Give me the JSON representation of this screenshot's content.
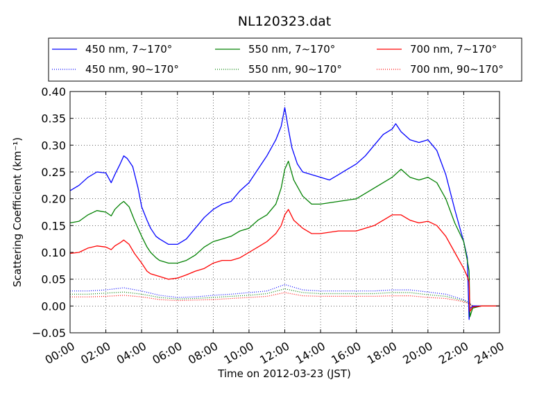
{
  "chart_data": {
    "type": "line",
    "title": "NL120323.dat",
    "xlabel": "Time on 2012-03-23 (JST)",
    "ylabel": "Scattering Coefficient (km⁻¹)",
    "xlim": [
      0,
      24
    ],
    "ylim": [
      -0.05,
      0.4
    ],
    "x_ticks": [
      "00:00",
      "02:00",
      "04:00",
      "06:00",
      "08:00",
      "10:00",
      "12:00",
      "14:00",
      "16:00",
      "18:00",
      "20:00",
      "22:00",
      "24:00"
    ],
    "y_ticks": [
      "−0.05",
      "0.00",
      "0.05",
      "0.10",
      "0.15",
      "0.20",
      "0.25",
      "0.30",
      "0.35",
      "0.40"
    ],
    "grid": true,
    "legend_position": "top",
    "series": [
      {
        "name": "450 nm, 7∼170°",
        "color": "#0000ff",
        "style": "solid",
        "x": [
          0,
          0.5,
          1,
          1.5,
          2,
          2.3,
          2.5,
          2.8,
          3,
          3.2,
          3.5,
          3.8,
          4,
          4.3,
          4.5,
          4.8,
          5,
          5.5,
          6,
          6.5,
          7,
          7.5,
          8,
          8.5,
          9,
          9.5,
          10,
          10.5,
          11,
          11.5,
          11.8,
          12,
          12.2,
          12.4,
          12.7,
          13,
          13.5,
          14,
          14.5,
          15,
          15.5,
          16,
          16.5,
          17,
          17.5,
          18,
          18.2,
          18.5,
          19,
          19.5,
          20,
          20.5,
          21,
          21.5,
          22,
          22.2,
          22.3,
          22.35,
          22.5,
          23,
          24
        ],
        "y": [
          0.215,
          0.225,
          0.24,
          0.25,
          0.248,
          0.23,
          0.245,
          0.265,
          0.28,
          0.275,
          0.26,
          0.22,
          0.185,
          0.16,
          0.145,
          0.13,
          0.125,
          0.115,
          0.115,
          0.125,
          0.145,
          0.165,
          0.18,
          0.19,
          0.195,
          0.215,
          0.23,
          0.255,
          0.28,
          0.31,
          0.335,
          0.37,
          0.33,
          0.295,
          0.265,
          0.25,
          0.245,
          0.24,
          0.235,
          0.245,
          0.255,
          0.265,
          0.28,
          0.3,
          0.32,
          0.33,
          0.34,
          0.325,
          0.31,
          0.305,
          0.31,
          0.29,
          0.245,
          0.18,
          0.12,
          0.09,
          -0.025,
          -0.005,
          0.0,
          0.0,
          0.0
        ]
      },
      {
        "name": "550 nm, 7∼170°",
        "color": "#008000",
        "style": "solid",
        "x": [
          0,
          0.5,
          1,
          1.5,
          2,
          2.3,
          2.5,
          2.8,
          3,
          3.3,
          3.6,
          4,
          4.3,
          4.5,
          4.8,
          5,
          5.5,
          6,
          6.5,
          7,
          7.5,
          8,
          8.5,
          9,
          9.5,
          10,
          10.5,
          11,
          11.5,
          11.8,
          12,
          12.2,
          12.5,
          13,
          13.5,
          14,
          15,
          16,
          17,
          18,
          18.5,
          19,
          19.5,
          20,
          20.5,
          21,
          21.5,
          22,
          22.2,
          22.3,
          22.35,
          22.5,
          23,
          24
        ],
        "y": [
          0.155,
          0.158,
          0.17,
          0.178,
          0.175,
          0.168,
          0.18,
          0.19,
          0.195,
          0.185,
          0.16,
          0.13,
          0.11,
          0.1,
          0.09,
          0.085,
          0.08,
          0.08,
          0.085,
          0.095,
          0.11,
          0.12,
          0.125,
          0.13,
          0.14,
          0.145,
          0.16,
          0.17,
          0.19,
          0.22,
          0.255,
          0.27,
          0.235,
          0.205,
          0.19,
          0.19,
          0.195,
          0.2,
          0.22,
          0.24,
          0.255,
          0.24,
          0.235,
          0.24,
          0.23,
          0.2,
          0.155,
          0.12,
          0.085,
          0.065,
          -0.02,
          -0.004,
          0.0,
          0.0
        ]
      },
      {
        "name": "700 nm, 7∼170°",
        "color": "#ff0000",
        "style": "solid",
        "x": [
          0,
          0.5,
          1,
          1.5,
          2,
          2.3,
          2.5,
          2.8,
          3,
          3.3,
          3.6,
          4,
          4.3,
          4.5,
          5,
          5.5,
          6,
          6.5,
          7,
          7.5,
          8,
          8.5,
          9,
          9.5,
          10,
          10.5,
          11,
          11.5,
          11.8,
          12,
          12.2,
          12.5,
          13,
          13.5,
          14,
          15,
          16,
          17,
          18,
          18.5,
          19,
          19.5,
          20,
          20.5,
          21,
          21.5,
          22,
          22.2,
          22.3,
          22.35,
          22.5,
          23,
          24
        ],
        "y": [
          0.098,
          0.1,
          0.108,
          0.112,
          0.11,
          0.105,
          0.112,
          0.118,
          0.123,
          0.115,
          0.098,
          0.08,
          0.065,
          0.06,
          0.055,
          0.05,
          0.052,
          0.058,
          0.065,
          0.07,
          0.08,
          0.085,
          0.085,
          0.09,
          0.1,
          0.11,
          0.12,
          0.135,
          0.15,
          0.17,
          0.18,
          0.16,
          0.145,
          0.135,
          0.135,
          0.14,
          0.14,
          0.15,
          0.17,
          0.17,
          0.16,
          0.155,
          0.158,
          0.15,
          0.13,
          0.1,
          0.07,
          0.055,
          0.045,
          -0.01,
          -0.002,
          0.0,
          0.0
        ]
      },
      {
        "name": "450 nm, 90∼170°",
        "color": "#0000ff",
        "style": "dotted",
        "x": [
          0,
          1,
          2,
          3,
          4,
          5,
          6,
          7,
          8,
          9,
          10,
          11,
          12,
          13,
          14,
          15,
          16,
          17,
          18,
          19,
          20,
          21,
          22,
          22.3,
          22.5,
          24
        ],
        "y": [
          0.028,
          0.028,
          0.03,
          0.034,
          0.028,
          0.02,
          0.016,
          0.017,
          0.02,
          0.022,
          0.025,
          0.028,
          0.04,
          0.03,
          0.028,
          0.028,
          0.028,
          0.028,
          0.03,
          0.03,
          0.026,
          0.022,
          0.012,
          0.006,
          0.0,
          0.0
        ]
      },
      {
        "name": "550 nm, 90∼170°",
        "color": "#008000",
        "style": "dotted",
        "x": [
          0,
          1,
          2,
          3,
          4,
          5,
          6,
          7,
          8,
          9,
          10,
          11,
          12,
          13,
          14,
          15,
          16,
          17,
          18,
          19,
          20,
          21,
          22,
          22.3,
          22.5,
          24
        ],
        "y": [
          0.022,
          0.022,
          0.024,
          0.026,
          0.022,
          0.016,
          0.013,
          0.014,
          0.016,
          0.018,
          0.02,
          0.023,
          0.032,
          0.025,
          0.023,
          0.023,
          0.023,
          0.023,
          0.025,
          0.025,
          0.021,
          0.018,
          0.01,
          0.005,
          0.0,
          0.0
        ]
      },
      {
        "name": "700 nm, 90∼170°",
        "color": "#ff0000",
        "style": "dotted",
        "x": [
          0,
          1,
          2,
          3,
          4,
          5,
          6,
          7,
          8,
          9,
          10,
          11,
          12,
          13,
          14,
          15,
          16,
          17,
          18,
          19,
          20,
          21,
          22,
          22.3,
          22.5,
          24
        ],
        "y": [
          0.017,
          0.017,
          0.018,
          0.02,
          0.017,
          0.012,
          0.01,
          0.011,
          0.012,
          0.014,
          0.016,
          0.018,
          0.025,
          0.019,
          0.018,
          0.018,
          0.018,
          0.018,
          0.019,
          0.019,
          0.016,
          0.014,
          0.008,
          0.004,
          0.0,
          0.0
        ]
      }
    ]
  }
}
